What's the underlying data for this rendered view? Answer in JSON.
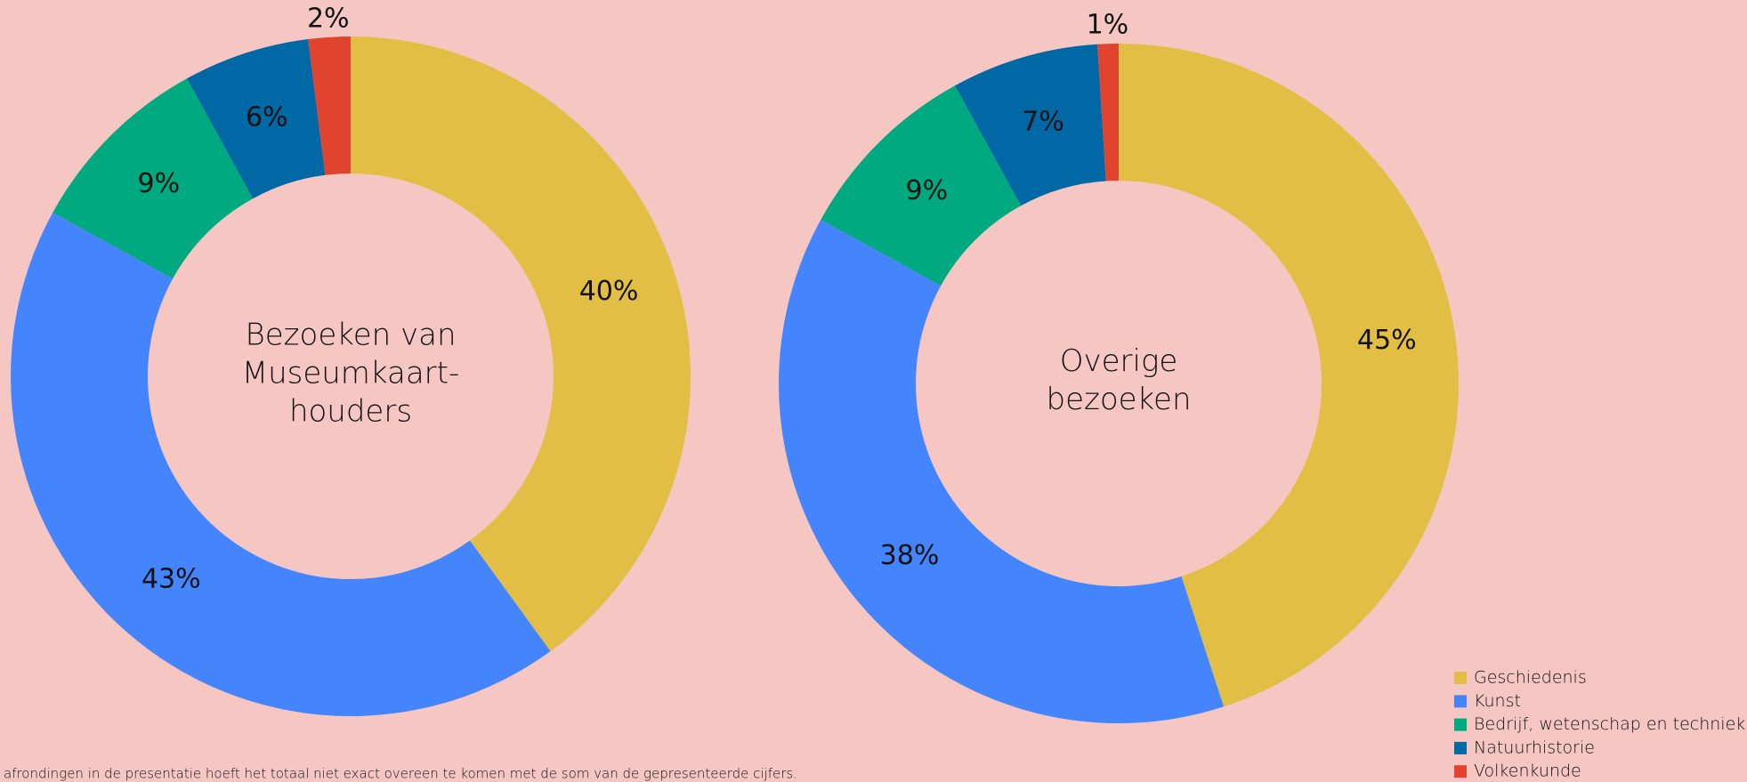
{
  "chart_data": [
    {
      "type": "pie",
      "donut": true,
      "title": [
        "Bezoeken van",
        "Museumkaart-",
        "houders"
      ],
      "categories": [
        "Geschiedenis",
        "Kunst",
        "Bedrijf, wetenschap en techniek",
        "Natuurhistorie",
        "Volkenkunde"
      ],
      "colors": [
        "#e3be45",
        "#4485fd",
        "#00a97f",
        "#0068a5",
        "#e0432e"
      ],
      "values": [
        40,
        43,
        9,
        6,
        2
      ],
      "value_labels": [
        "40%",
        "43%",
        "9%",
        "6%",
        "2%"
      ]
    },
    {
      "type": "pie",
      "donut": true,
      "title": [
        "Overige",
        "bezoeken"
      ],
      "categories": [
        "Geschiedenis",
        "Kunst",
        "Bedrijf, wetenschap en techniek",
        "Natuurhistorie",
        "Volkenkunde"
      ],
      "colors": [
        "#e3be45",
        "#4485fd",
        "#00a97f",
        "#0068a5",
        "#e0432e"
      ],
      "values": [
        45,
        38,
        9,
        7,
        1
      ],
      "value_labels": [
        "45%",
        "38%",
        "9%",
        "7%",
        "1%"
      ]
    }
  ],
  "footnote": "afrondingen in de presentatie hoeft het totaal niet exact overeen te komen met de som van de gepresenteerde cijfers."
}
